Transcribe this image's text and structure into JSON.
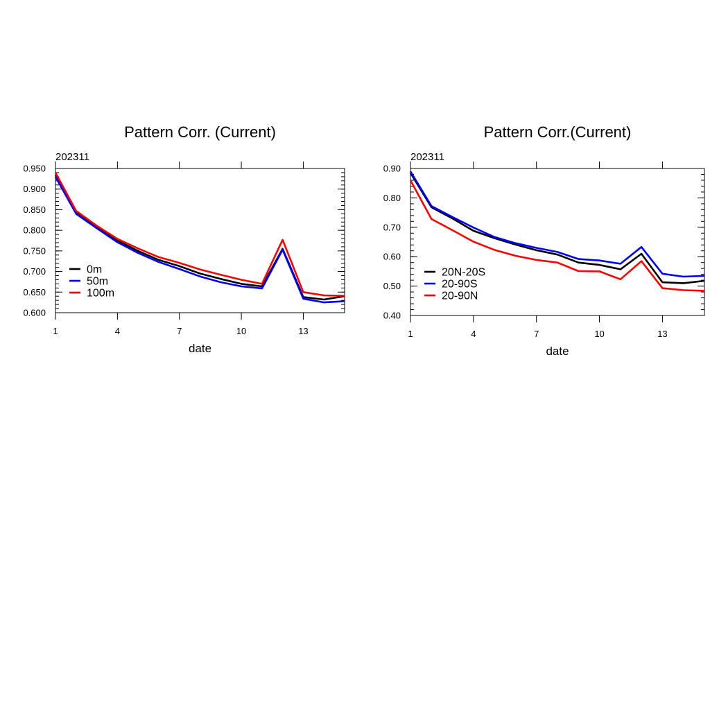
{
  "chart_data": [
    {
      "type": "line",
      "title": "Pattern Corr. (Current)",
      "subtitle": "202311",
      "xlabel": "date",
      "ylabel": "",
      "xlim": [
        1,
        15
      ],
      "ylim": [
        0.6,
        0.95
      ],
      "xticks": [
        1,
        4,
        7,
        10,
        13
      ],
      "yticks": [
        0.6,
        0.65,
        0.7,
        0.75,
        0.8,
        0.85,
        0.9,
        0.95
      ],
      "ytick_labels": [
        "0.600",
        "0.650",
        "0.700",
        "0.750",
        "0.800",
        "0.850",
        "0.900",
        "0.950"
      ],
      "legend": "center-left",
      "x": [
        1,
        2,
        3,
        4,
        5,
        6,
        7,
        8,
        9,
        10,
        11,
        12,
        13,
        14,
        15
      ],
      "series": [
        {
          "name": "0m",
          "color": "#000000",
          "values": [
            0.935,
            0.842,
            0.808,
            0.775,
            0.75,
            0.728,
            0.713,
            0.695,
            0.682,
            0.67,
            0.664,
            0.755,
            0.638,
            0.632,
            0.64
          ]
        },
        {
          "name": "50m",
          "color": "#0000ff",
          "values": [
            0.93,
            0.84,
            0.805,
            0.771,
            0.745,
            0.723,
            0.706,
            0.688,
            0.674,
            0.664,
            0.659,
            0.753,
            0.634,
            0.625,
            0.628
          ]
        },
        {
          "name": "100m",
          "color": "#ff0000",
          "values": [
            0.94,
            0.847,
            0.811,
            0.779,
            0.756,
            0.735,
            0.721,
            0.705,
            0.692,
            0.68,
            0.67,
            0.777,
            0.65,
            0.642,
            0.641
          ]
        }
      ]
    },
    {
      "type": "line",
      "title": "Pattern Corr.(Current)",
      "subtitle": "202311",
      "xlabel": "date",
      "ylabel": "",
      "xlim": [
        1,
        15
      ],
      "ylim": [
        0.4,
        0.9
      ],
      "xticks": [
        1,
        4,
        7,
        10,
        13
      ],
      "yticks": [
        0.4,
        0.5,
        0.6,
        0.7,
        0.8,
        0.9
      ],
      "ytick_labels": [
        "0.40",
        "0.50",
        "0.60",
        "0.70",
        "0.80",
        "0.90"
      ],
      "legend": "center-left",
      "x": [
        1,
        2,
        3,
        4,
        5,
        6,
        7,
        8,
        9,
        10,
        11,
        12,
        13,
        14,
        15
      ],
      "series": [
        {
          "name": "20N-20S",
          "color": "#000000",
          "values": [
            0.885,
            0.768,
            0.73,
            0.688,
            0.663,
            0.641,
            0.622,
            0.607,
            0.58,
            0.572,
            0.557,
            0.61,
            0.513,
            0.51,
            0.518
          ]
        },
        {
          "name": "20-90S",
          "color": "#0000ff",
          "values": [
            0.89,
            0.772,
            0.735,
            0.699,
            0.667,
            0.646,
            0.63,
            0.616,
            0.592,
            0.587,
            0.576,
            0.633,
            0.542,
            0.532,
            0.535
          ]
        },
        {
          "name": "20-90N",
          "color": "#ff0000",
          "values": [
            0.86,
            0.728,
            0.69,
            0.651,
            0.623,
            0.603,
            0.589,
            0.58,
            0.551,
            0.55,
            0.523,
            0.585,
            0.493,
            0.486,
            0.484
          ]
        }
      ]
    }
  ]
}
